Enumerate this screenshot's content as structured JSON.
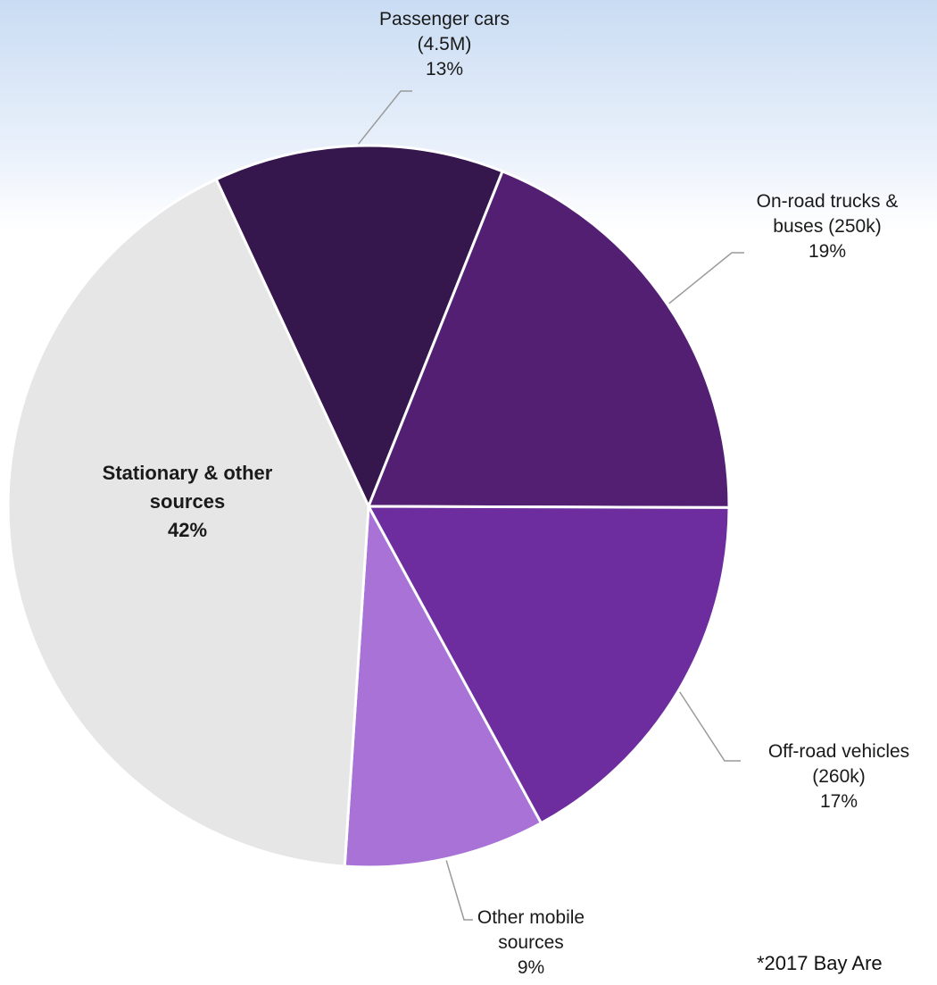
{
  "chart_data": {
    "type": "pie",
    "title": "",
    "slices": [
      {
        "lines": [
          "Passenger cars",
          "(4.5M)",
          "13%"
        ],
        "value": 13,
        "color": "#36174d"
      },
      {
        "lines": [
          "On-road trucks &",
          "buses (250k)",
          "19%"
        ],
        "value": 19,
        "color": "#521f73"
      },
      {
        "lines": [
          "Off-road vehicles",
          "(260k)",
          "17%"
        ],
        "value": 17,
        "color": "#6d2d9e"
      },
      {
        "lines": [
          "Other mobile",
          "sources",
          "9%"
        ],
        "value": 9,
        "color": "#a872d6"
      },
      {
        "lines": [
          "Stationary & other",
          "sources",
          "42%"
        ],
        "value": 42,
        "color": "#e6e6e6",
        "label_inside": true
      }
    ],
    "footnote": "*2017 Bay Are"
  }
}
